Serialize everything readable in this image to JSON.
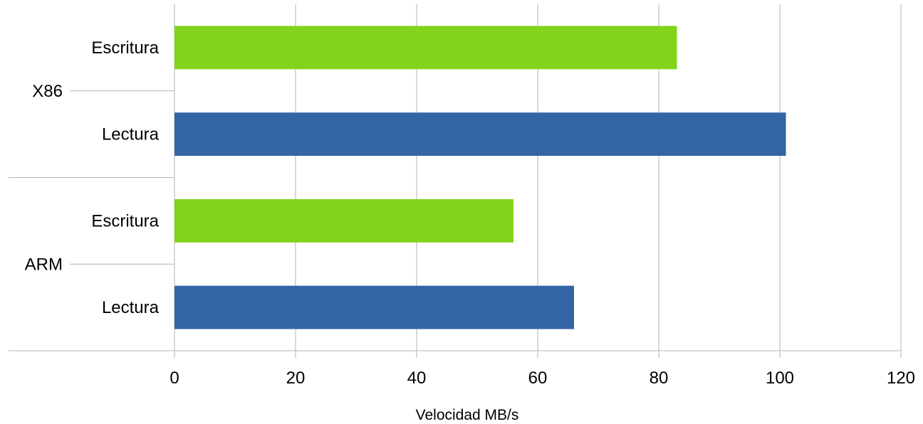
{
  "chart_data": {
    "type": "bar",
    "orientation": "horizontal",
    "title": "",
    "xlabel": "Velocidad MB/s",
    "xlim": [
      0,
      120
    ],
    "xticks": [
      0,
      20,
      40,
      60,
      80,
      100,
      120
    ],
    "grid": true,
    "groups": [
      {
        "name": "X86",
        "bars": [
          {
            "label": "Escritura",
            "value": 83,
            "color": "#81d41a"
          },
          {
            "label": "Lectura",
            "value": 101,
            "color": "#3465a4"
          }
        ]
      },
      {
        "name": "ARM",
        "bars": [
          {
            "label": "Escritura",
            "value": 56,
            "color": "#81d41a"
          },
          {
            "label": "Lectura",
            "value": 66,
            "color": "#3465a4"
          }
        ]
      }
    ]
  }
}
